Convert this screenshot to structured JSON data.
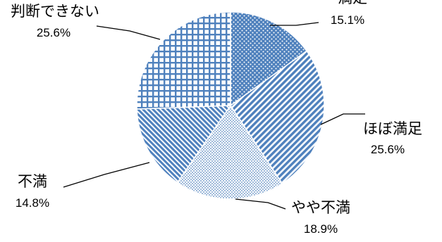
{
  "chart_data": {
    "type": "pie",
    "title": "",
    "legend": "none",
    "slices": [
      {
        "label": "満足",
        "value": 15.1,
        "value_label": "15.1%",
        "pattern": "dots",
        "color": "#4f81bd"
      },
      {
        "label": "ほぼ満足",
        "value": 25.6,
        "value_label": "25.6%",
        "pattern": "diagonal",
        "color": "#4f81bd"
      },
      {
        "label": "やや不満",
        "value": 18.9,
        "value_label": "18.9%",
        "pattern": "fine-dots",
        "color": "#4f81bd"
      },
      {
        "label": "不満",
        "value": 14.8,
        "value_label": "14.8%",
        "pattern": "diagonal-dense",
        "color": "#4f81bd"
      },
      {
        "label": "判断できない",
        "value": 25.6,
        "value_label": "25.6%",
        "pattern": "grid",
        "color": "#4f81bd"
      }
    ]
  }
}
